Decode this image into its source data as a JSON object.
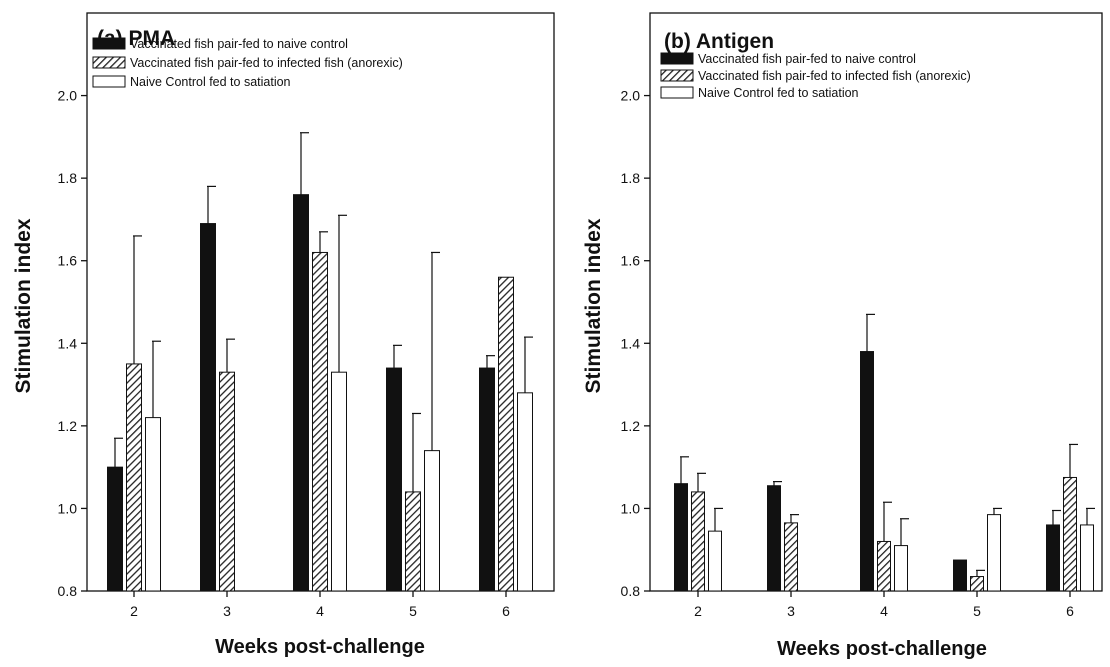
{
  "chart_data": [
    {
      "type": "bar",
      "title": "(a) PMA",
      "xlabel": "Weeks post-challenge",
      "ylabel": "Stimulation index",
      "ylim": [
        0.8,
        2.2
      ],
      "yticks": [
        "0.8",
        "1.0",
        "1.2",
        "1.4",
        "1.6",
        "1.8",
        "2.0"
      ],
      "categories": [
        "2",
        "3",
        "4",
        "5",
        "6"
      ],
      "legend_position": "top-left",
      "series": [
        {
          "name": "Vaccinated fish pair-fed to naive control",
          "style": "solid-black",
          "values": [
            1.1,
            1.69,
            1.76,
            1.34,
            1.34
          ],
          "error": [
            0.07,
            0.09,
            0.15,
            0.055,
            0.03
          ]
        },
        {
          "name": "Vaccinated fish pair-fed to infected fish (anorexic)",
          "style": "hatched",
          "values": [
            1.35,
            1.33,
            1.62,
            1.04,
            1.56
          ],
          "error": [
            0.31,
            0.08,
            0.05,
            0.19,
            0.0
          ]
        },
        {
          "name": "Naive Control fed to satiation",
          "style": "white",
          "values": [
            1.22,
            null,
            1.33,
            1.14,
            1.28
          ],
          "error": [
            0.185,
            null,
            0.38,
            0.48,
            0.135
          ]
        }
      ]
    },
    {
      "type": "bar",
      "title": "(b) Antigen",
      "xlabel": "Weeks post-challenge",
      "ylabel": "Stimulation index",
      "ylim": [
        0.8,
        2.2
      ],
      "yticks": [
        "0.8",
        "1.0",
        "1.2",
        "1.4",
        "1.6",
        "1.8",
        "2.0"
      ],
      "categories": [
        "2",
        "3",
        "4",
        "5",
        "6"
      ],
      "legend_position": "top-left",
      "series": [
        {
          "name": "Vaccinated fish pair-fed to naive control",
          "style": "solid-black",
          "values": [
            1.06,
            1.055,
            1.38,
            0.875,
            0.96
          ],
          "error": [
            0.065,
            0.01,
            0.09,
            0.0,
            0.035
          ]
        },
        {
          "name": "Vaccinated fish pair-fed to infected fish (anorexic)",
          "style": "hatched",
          "values": [
            1.04,
            0.965,
            0.92,
            0.835,
            1.075
          ],
          "error": [
            0.045,
            0.02,
            0.095,
            0.015,
            0.08
          ]
        },
        {
          "name": "Naive Control fed to satiation",
          "style": "white",
          "values": [
            0.945,
            null,
            0.91,
            0.985,
            0.96
          ],
          "error": [
            0.055,
            null,
            0.065,
            0.015,
            0.04
          ]
        }
      ]
    }
  ]
}
